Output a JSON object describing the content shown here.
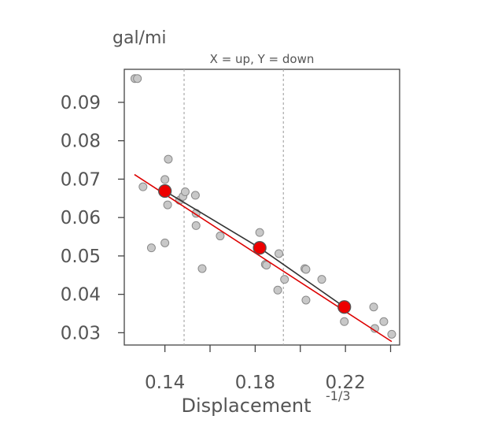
{
  "chart_data": {
    "type": "scatter",
    "ylabel": "gal/mi",
    "subtitle": "X = up, Y = down",
    "xlabel": "Displacement",
    "xlabel_superscript": "-1/3",
    "xlim": [
      0.122,
      0.244
    ],
    "ylim": [
      0.0268,
      0.0986
    ],
    "xticks": [
      0.14,
      0.18,
      0.22
    ],
    "xtick_marks": [
      0.14,
      0.16,
      0.18,
      0.2,
      0.22,
      0.24
    ],
    "yticks": [
      0.03,
      0.04,
      0.05,
      0.06,
      0.07,
      0.08,
      0.09
    ],
    "vlines": [
      0.1485,
      0.1925
    ],
    "colors": {
      "points": "#c8c8c8",
      "points_edge": "#8a8a8a",
      "regression": "#dd0000",
      "quantile_line": "#333333",
      "quantile_points": "#ee0000",
      "axis": "#444444",
      "text": "#555555",
      "vline": "#aaaaaa"
    },
    "points": [
      [
        0.1267,
        0.0962
      ],
      [
        0.1278,
        0.0962
      ],
      [
        0.1303,
        0.068
      ],
      [
        0.134,
        0.0521
      ],
      [
        0.14,
        0.0534
      ],
      [
        0.14,
        0.0699
      ],
      [
        0.1412,
        0.0633
      ],
      [
        0.1415,
        0.0752
      ],
      [
        0.1465,
        0.0645
      ],
      [
        0.148,
        0.0655
      ],
      [
        0.149,
        0.0667
      ],
      [
        0.1535,
        0.0658
      ],
      [
        0.1538,
        0.0611
      ],
      [
        0.1538,
        0.0579
      ],
      [
        0.1565,
        0.0467
      ],
      [
        0.1645,
        0.0552
      ],
      [
        0.182,
        0.0561
      ],
      [
        0.1845,
        0.0478
      ],
      [
        0.185,
        0.0476
      ],
      [
        0.19,
        0.0411
      ],
      [
        0.1905,
        0.0506
      ],
      [
        0.193,
        0.0439
      ],
      [
        0.202,
        0.0467
      ],
      [
        0.2025,
        0.0465
      ],
      [
        0.2025,
        0.0385
      ],
      [
        0.2095,
        0.0439
      ],
      [
        0.2195,
        0.0329
      ],
      [
        0.2325,
        0.0367
      ],
      [
        0.233,
        0.0311
      ],
      [
        0.237,
        0.0329
      ],
      [
        0.2405,
        0.0296
      ]
    ],
    "regression_line": [
      [
        0.1265,
        0.0712
      ],
      [
        0.2405,
        0.0277
      ]
    ],
    "quantile_points": [
      [
        0.14,
        0.0669
      ],
      [
        0.182,
        0.0521
      ],
      [
        0.2195,
        0.0367
      ]
    ]
  }
}
